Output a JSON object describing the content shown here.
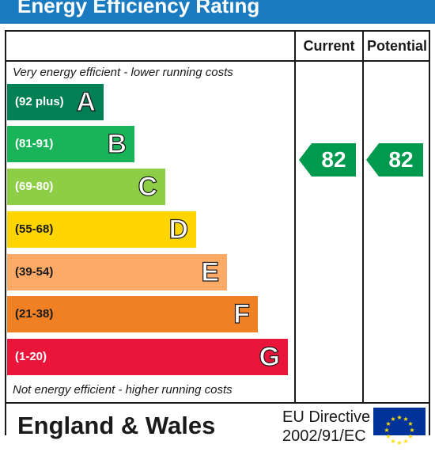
{
  "header": {
    "title": "Energy Efficiency Rating"
  },
  "columns": {
    "current_label": "Current",
    "potential_label": "Potential"
  },
  "captions": {
    "top": "Very energy efficient - lower running costs",
    "bottom": "Not energy efficient - higher running costs"
  },
  "bands": [
    {
      "range": "(92 plus)",
      "letter": "A",
      "color": "#008054"
    },
    {
      "range": "(81-91)",
      "letter": "B",
      "color": "#19b459"
    },
    {
      "range": "(69-80)",
      "letter": "C",
      "color": "#8dce46"
    },
    {
      "range": "(55-68)",
      "letter": "D",
      "color": "#ffd500"
    },
    {
      "range": "(39-54)",
      "letter": "E",
      "color": "#fcaa65"
    },
    {
      "range": "(21-38)",
      "letter": "F",
      "color": "#ef8023"
    },
    {
      "range": "(1-20)",
      "letter": "G",
      "color": "#e9153b"
    }
  ],
  "ratings": {
    "current": "82",
    "potential": "82",
    "color": "#009a4e"
  },
  "footer": {
    "country": "England & Wales",
    "directive_line1": "EU Directive",
    "directive_line2": "2002/91/EC"
  },
  "colors": {
    "header_bg": "#1b7bc1",
    "eu_flag_bg": "#003399",
    "eu_star": "#ffdd00"
  }
}
